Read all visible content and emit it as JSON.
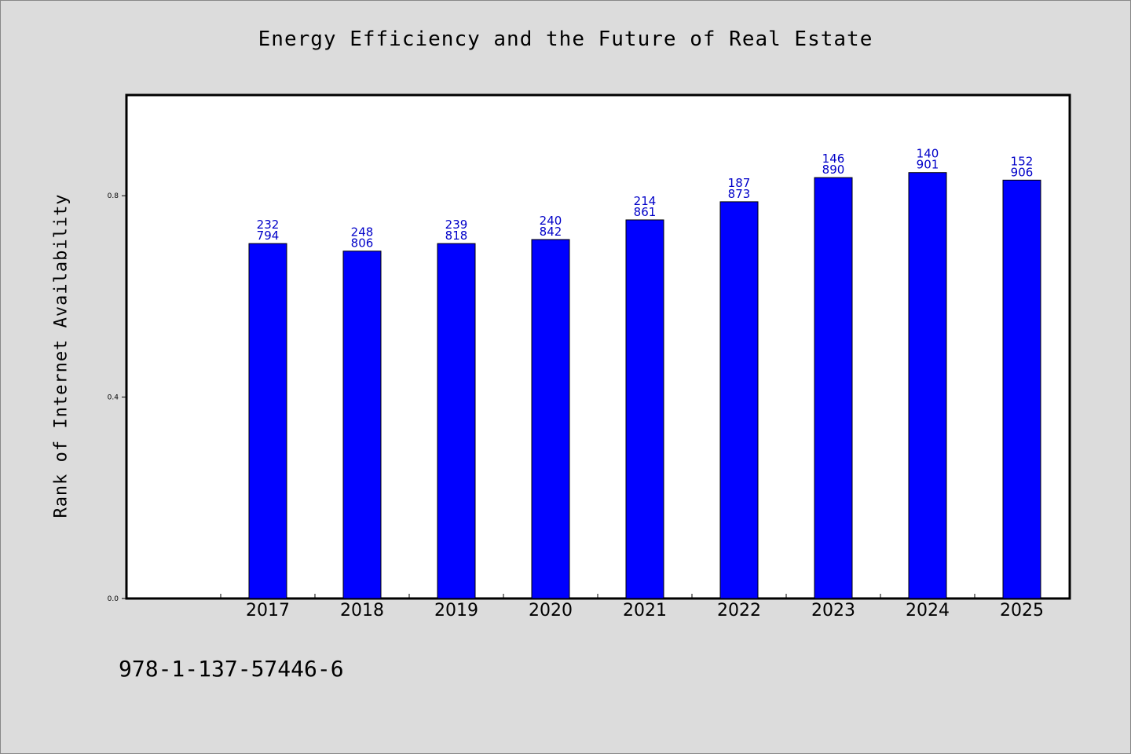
{
  "chart_data": {
    "type": "bar",
    "title": "Energy Efficiency and the Future of Real Estate",
    "ylabel": "Rank of Internet Availability",
    "xlabel": "",
    "ylim": [
      0,
      1.0
    ],
    "yticks": [
      0.0,
      0.4,
      0.8
    ],
    "ytick_labels": [
      "0.0",
      "0.4",
      "0.8"
    ],
    "categories": [
      "2017",
      "2018",
      "2019",
      "2020",
      "2021",
      "2022",
      "2023",
      "2024",
      "2025"
    ],
    "values": [
      0.705,
      0.69,
      0.705,
      0.713,
      0.752,
      0.788,
      0.836,
      0.846,
      0.831
    ],
    "label_top": [
      "232",
      "248",
      "239",
      "240",
      "214",
      "187",
      "146",
      "140",
      "152"
    ],
    "label_bottom": [
      "794",
      "806",
      "818",
      "842",
      "861",
      "873",
      "890",
      "901",
      "906"
    ],
    "bar_color": "#0000ff",
    "label_color": "#0000c8",
    "grid": false
  },
  "footer": {
    "code": "978-1-137-57446-6"
  },
  "colors": {
    "background": "#dcdcdc",
    "plot_background": "#ffffff"
  }
}
